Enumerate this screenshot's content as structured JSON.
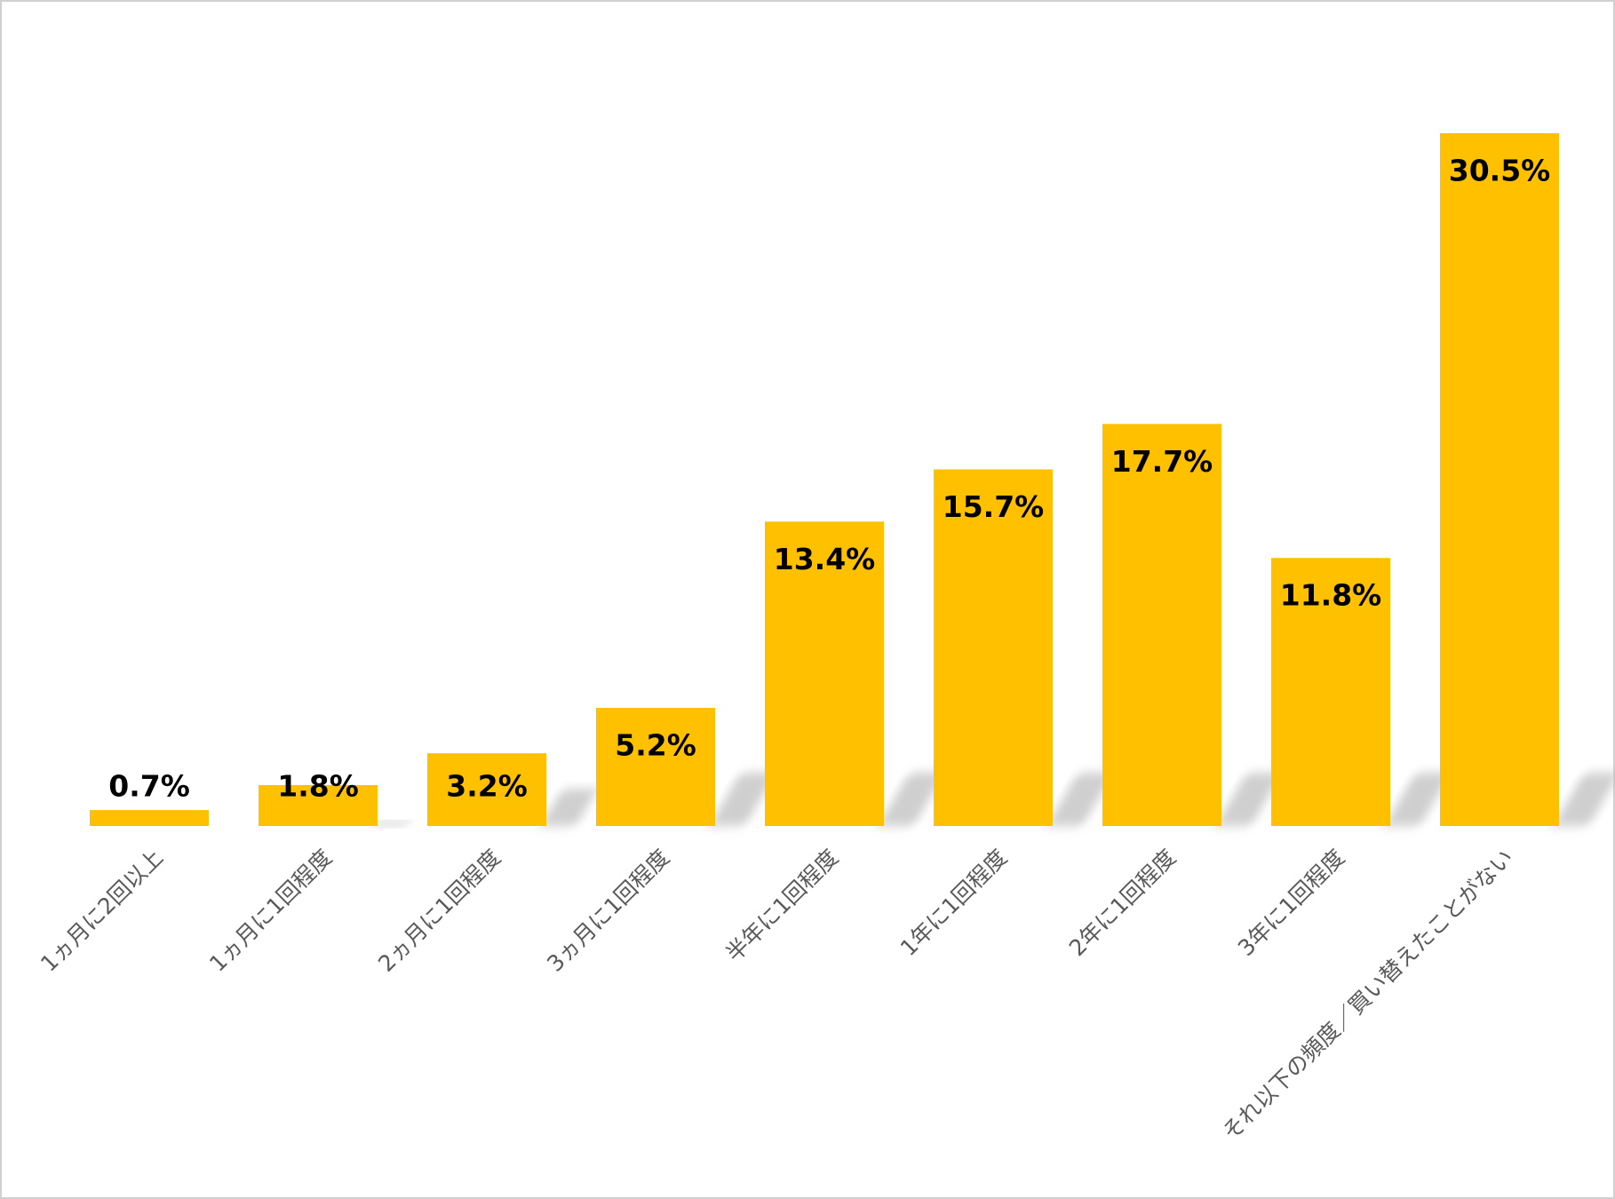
{
  "chart_data": {
    "type": "bar",
    "categories": [
      "1ヵ月に2回以上",
      "1ヵ月に1回程度",
      "2ヵ月に1回程度",
      "3ヵ月に1回程度",
      "半年に1回程度",
      "1年に1回程度",
      "2年に1回程度",
      "3年に1回程度",
      "それ以下の頻度／買い替えたことがない"
    ],
    "values": [
      0.7,
      1.8,
      3.2,
      5.2,
      13.4,
      15.7,
      17.7,
      11.8,
      30.5
    ],
    "value_labels": [
      "0.7%",
      "1.8%",
      "3.2%",
      "5.2%",
      "13.4%",
      "15.7%",
      "17.7%",
      "11.8%",
      "30.5%"
    ],
    "color": "#FFC000"
  }
}
